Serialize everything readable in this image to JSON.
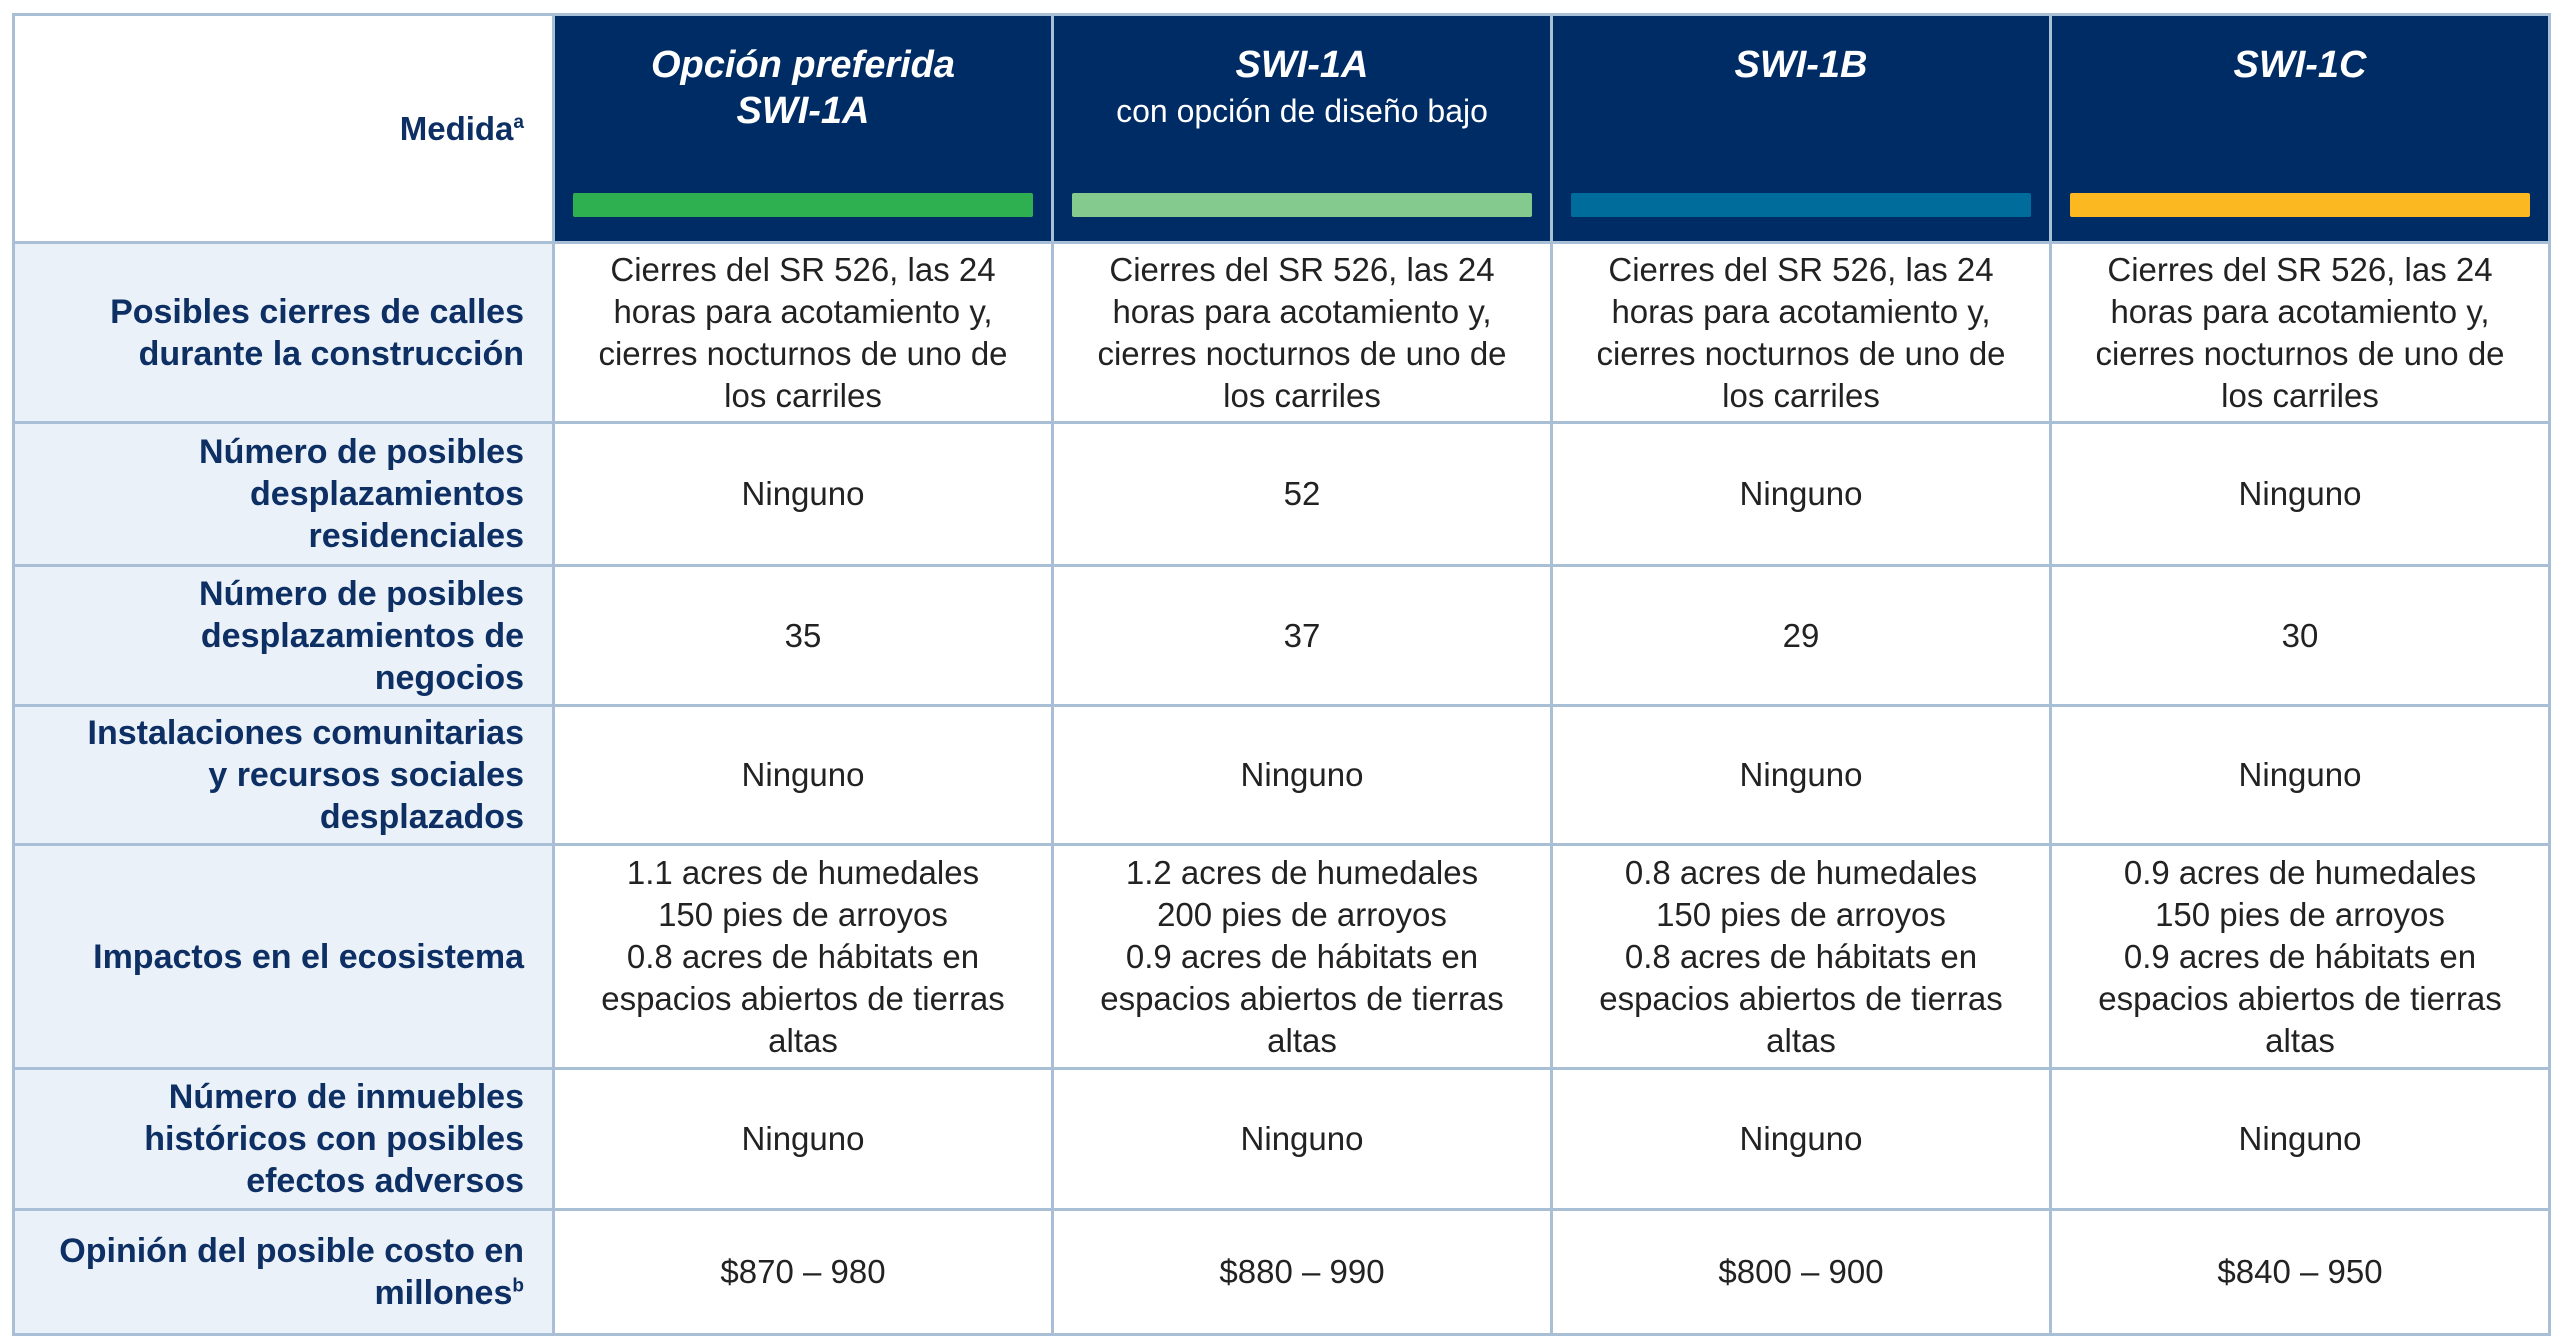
{
  "header": {
    "measure_label": "Medida",
    "measure_footnote": "a",
    "options": [
      {
        "title": "Opción preferida",
        "title2": "SWI-1A",
        "subtitle": "",
        "bar_color": "#2eb050"
      },
      {
        "title": "SWI-1A",
        "title2": "",
        "subtitle": "con opción de diseño bajo",
        "bar_color": "#84c98d"
      },
      {
        "title": "SWI-1B",
        "title2": "",
        "subtitle": "",
        "bar_color": "#006c9b"
      },
      {
        "title": "SWI-1C",
        "title2": "",
        "subtitle": "",
        "bar_color": "#fbb820"
      }
    ]
  },
  "rows": [
    {
      "label": [
        "Posibles cierres de calles",
        "durante la construcción"
      ],
      "footnote": "",
      "values": [
        [
          "Cierres del SR 526, las 24",
          "horas para acotamiento y,",
          "cierres nocturnos de uno de",
          "los carriles"
        ],
        [
          "Cierres del SR 526, las 24",
          "horas para acotamiento y,",
          "cierres nocturnos de uno de",
          "los carriles"
        ],
        [
          "Cierres del SR 526, las 24",
          "horas para acotamiento y,",
          "cierres nocturnos de uno de",
          "los carriles"
        ],
        [
          "Cierres del SR 526, las 24",
          "horas para acotamiento y,",
          "cierres nocturnos de uno de",
          "los carriles"
        ]
      ]
    },
    {
      "label": [
        "Número de posibles",
        "desplazamientos",
        "residenciales"
      ],
      "footnote": "",
      "values": [
        [
          "Ninguno"
        ],
        [
          "52"
        ],
        [
          "Ninguno"
        ],
        [
          "Ninguno"
        ]
      ]
    },
    {
      "label": [
        "Número de posibles",
        "desplazamientos de",
        "negocios"
      ],
      "footnote": "",
      "values": [
        [
          "35"
        ],
        [
          "37"
        ],
        [
          "29"
        ],
        [
          "30"
        ]
      ]
    },
    {
      "label": [
        "Instalaciones comunitarias",
        "y recursos sociales",
        "desplazados"
      ],
      "footnote": "",
      "values": [
        [
          "Ninguno"
        ],
        [
          "Ninguno"
        ],
        [
          "Ninguno"
        ],
        [
          "Ninguno"
        ]
      ]
    },
    {
      "label": [
        "Impactos en el ecosistema"
      ],
      "footnote": "",
      "values": [
        [
          "1.1 acres de humedales",
          "150 pies de arroyos",
          "0.8 acres de hábitats en",
          "espacios abiertos de tierras",
          "altas"
        ],
        [
          "1.2 acres de humedales",
          "200 pies de arroyos",
          "0.9 acres de hábitats en",
          "espacios abiertos de tierras",
          "altas"
        ],
        [
          "0.8 acres de humedales",
          "150 pies de arroyos",
          "0.8 acres de hábitats en",
          "espacios abiertos de tierras",
          "altas"
        ],
        [
          "0.9 acres de humedales",
          "150 pies de arroyos",
          "0.9 acres de hábitats en",
          "espacios abiertos de tierras",
          "altas"
        ]
      ]
    },
    {
      "label": [
        "Número de inmuebles",
        "históricos con posibles",
        "efectos adversos"
      ],
      "footnote": "",
      "values": [
        [
          "Ninguno"
        ],
        [
          "Ninguno"
        ],
        [
          "Ninguno"
        ],
        [
          "Ninguno"
        ]
      ]
    },
    {
      "label": [
        "Opinión del posible costo en",
        "millones"
      ],
      "footnote": "b",
      "values": [
        [
          "$870 – 980"
        ],
        [
          "$880 – 990"
        ],
        [
          "$800 – 900"
        ],
        [
          "$840 – 950"
        ]
      ]
    }
  ]
}
